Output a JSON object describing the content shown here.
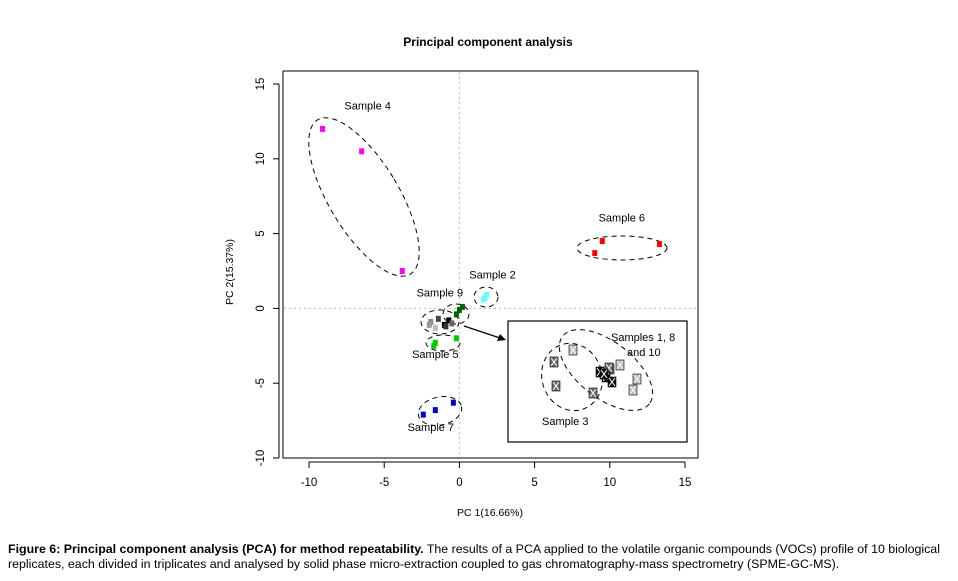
{
  "chart_data": {
    "type": "scatter",
    "title": "Principal component analysis",
    "xlabel": "PC 1(16.66%)",
    "ylabel": "PC 2(15.37%)",
    "xlim": [
      -11.5,
      16.5
    ],
    "ylim": [
      -10,
      16
    ],
    "xticks": [
      -10,
      -5,
      0,
      5,
      10,
      15
    ],
    "yticks": [
      -10,
      -5,
      0,
      5,
      10,
      15
    ],
    "xtick_labels": [
      "-10",
      "-5",
      "0",
      "5",
      "10",
      "15"
    ],
    "ytick_labels": [
      "-10",
      "-5",
      "0",
      "5",
      "10",
      "15"
    ],
    "reference_lines": {
      "x": 0,
      "y": 0,
      "style": "dotted"
    },
    "grid": false,
    "series": [
      {
        "name": "Sample 4",
        "color": "#ff00ff",
        "points": [
          [
            -9.1,
            12.0
          ],
          [
            -6.5,
            10.5
          ],
          [
            -3.8,
            2.5
          ]
        ]
      },
      {
        "name": "Sample 6",
        "color": "#ff0000",
        "points": [
          [
            9.5,
            4.5
          ],
          [
            9.0,
            3.7
          ],
          [
            13.3,
            4.3
          ]
        ]
      },
      {
        "name": "Sample 2",
        "color": "#66ffff",
        "points": [
          [
            1.6,
            0.6
          ],
          [
            1.8,
            0.9
          ],
          [
            1.7,
            0.7
          ]
        ]
      },
      {
        "name": "Sample 9",
        "color": "#006400",
        "points": [
          [
            0.2,
            0.1
          ],
          [
            -0.2,
            -0.4
          ],
          [
            0.0,
            -0.1
          ]
        ]
      },
      {
        "name": "Sample 5",
        "color": "#00cc00",
        "points": [
          [
            -1.7,
            -2.5
          ],
          [
            -0.2,
            -2.0
          ],
          [
            -1.6,
            -2.3
          ]
        ]
      },
      {
        "name": "Sample 7",
        "color": "#0000cc",
        "points": [
          [
            -2.4,
            -7.1
          ],
          [
            -1.6,
            -6.8
          ],
          [
            -0.4,
            -6.3
          ]
        ]
      }
    ],
    "annotations": [
      {
        "text": "Sample 4",
        "x": -6.1,
        "y": 13.3
      },
      {
        "text": "Sample 6",
        "x": 10.8,
        "y": 5.8
      },
      {
        "text": "Sample 2",
        "x": 2.2,
        "y": 2.0
      },
      {
        "text": "Sample 9",
        "x": -1.3,
        "y": 0.8
      },
      {
        "text": "Sample 5",
        "x": -1.6,
        "y": -3.3
      },
      {
        "text": "Sample 7",
        "x": -1.9,
        "y": -8.2
      }
    ],
    "inset": {
      "description_labels": [
        "Samples 1, 8",
        "and 10",
        "Sample 3"
      ],
      "light_marks": [
        [
          573,
          350
        ],
        [
          620,
          365
        ],
        [
          637,
          379
        ],
        [
          633,
          390
        ],
        [
          610,
          369
        ]
      ],
      "dark_marks": [
        [
          554,
          362
        ],
        [
          556,
          386
        ],
        [
          593,
          393
        ],
        [
          609,
          368
        ]
      ],
      "black_marks": [
        [
          600,
          372
        ],
        [
          606,
          377
        ],
        [
          612,
          382
        ],
        [
          604,
          374
        ]
      ]
    }
  },
  "caption": {
    "bold": "Figure 6: Principal component analysis (PCA) for method repeatability.",
    "text": " The results of a PCA applied to the volatile organic compounds (VOCs) profile of 10 biological replicates, each divided in triplicates and analysed by solid phase micro-extraction coupled to gas chromatography-mass spectrometry (SPME-GC-MS)."
  }
}
